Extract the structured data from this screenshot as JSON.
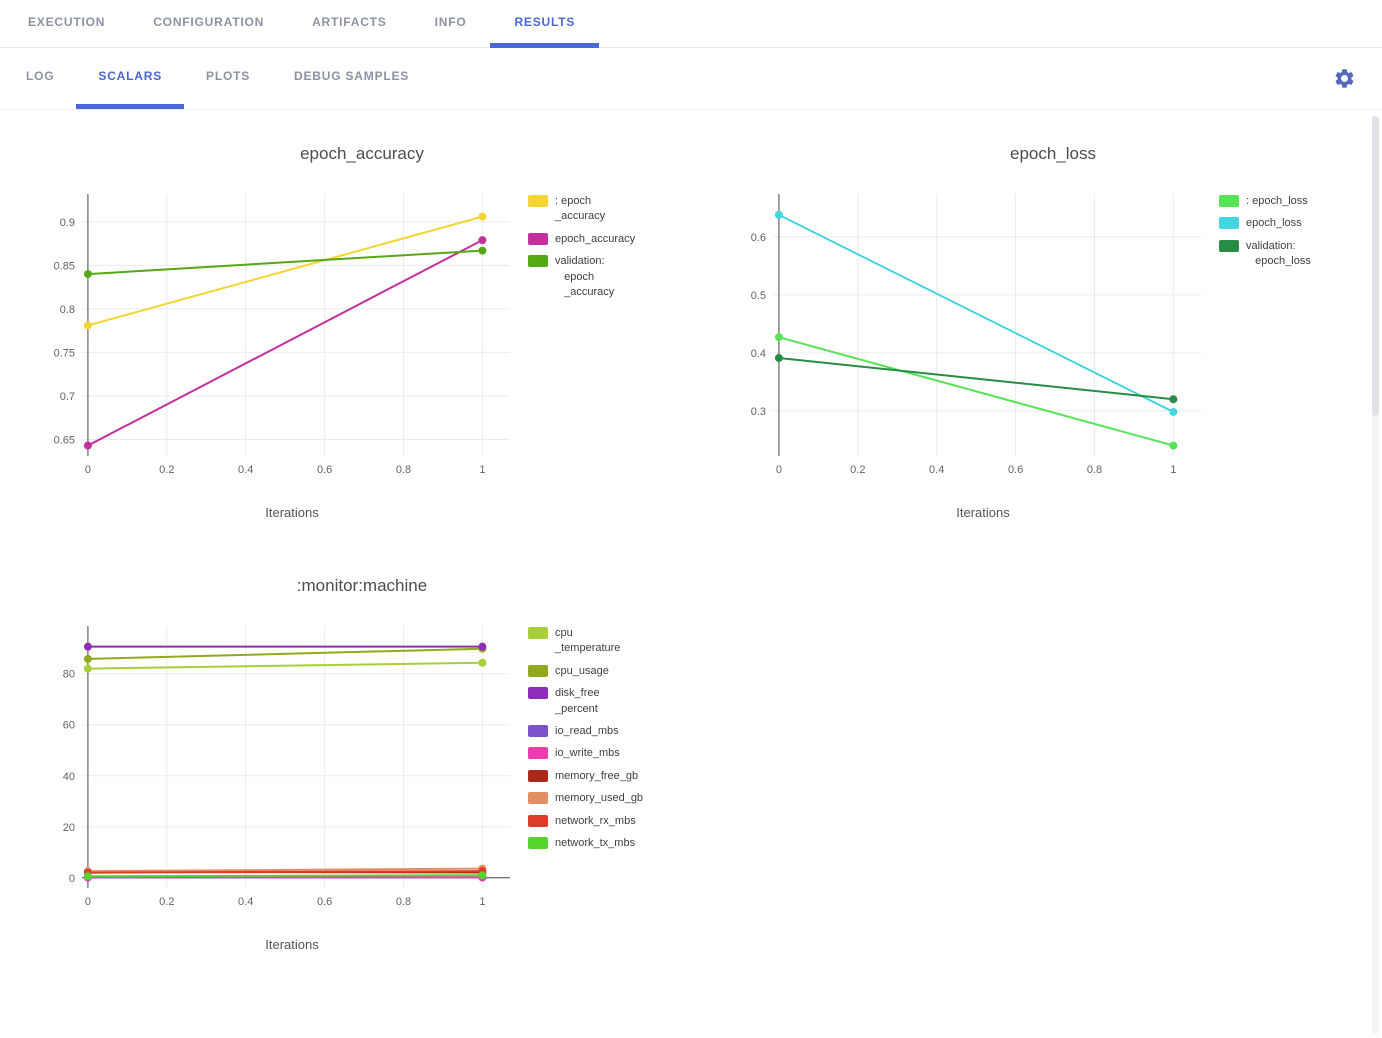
{
  "topnav": {
    "tabs": [
      {
        "label": "EXECUTION",
        "active": false
      },
      {
        "label": "CONFIGURATION",
        "active": false
      },
      {
        "label": "ARTIFACTS",
        "active": false
      },
      {
        "label": "INFO",
        "active": false
      },
      {
        "label": "RESULTS",
        "active": true
      }
    ]
  },
  "subnav": {
    "tabs": [
      {
        "label": "LOG",
        "active": false
      },
      {
        "label": "SCALARS",
        "active": true
      },
      {
        "label": "PLOTS",
        "active": false
      },
      {
        "label": "DEBUG SAMPLES",
        "active": false
      }
    ],
    "settings_icon": "gear-icon"
  },
  "colors": {
    "accent": "#4a67d9",
    "tab_inactive": "#8b93a3",
    "grid": "#ebebeb",
    "zeroline": "#444444"
  },
  "chart_data": [
    {
      "type": "line",
      "title": "epoch_accuracy",
      "xlabel": "Iterations",
      "legend_position": "right",
      "grid": true,
      "x": [
        0,
        1
      ],
      "xlim": [
        -0.015,
        1.07
      ],
      "xticks": [
        0,
        0.2,
        0.4,
        0.6,
        0.8,
        1
      ],
      "xtick_labels": [
        "0",
        "0.2",
        "0.4",
        "0.6",
        "0.8",
        "1"
      ],
      "ylim": [
        0.631,
        0.932
      ],
      "yticks": [
        0.65,
        0.7,
        0.75,
        0.8,
        0.85,
        0.9
      ],
      "ytick_labels": [
        "0.65",
        "0.7",
        "0.75",
        "0.8",
        "0.85",
        "0.9"
      ],
      "series": [
        {
          "name": ": epoch_accuracy",
          "label": ": epoch\n_accuracy",
          "color": "#f5d433",
          "values": [
            0.781,
            0.906
          ]
        },
        {
          "name": "epoch_accuracy",
          "label": "epoch_accuracy",
          "color": "#c2309d",
          "values": [
            0.643,
            0.879
          ]
        },
        {
          "name": "validation: epoch_accuracy",
          "label": "validation:\n   epoch\n   _accuracy",
          "color": "#55a813",
          "values": [
            0.84,
            0.867
          ]
        }
      ]
    },
    {
      "type": "line",
      "title": "epoch_loss",
      "xlabel": "Iterations",
      "legend_position": "right",
      "grid": true,
      "x": [
        0,
        1
      ],
      "xlim": [
        -0.015,
        1.07
      ],
      "xticks": [
        0,
        0.2,
        0.4,
        0.6,
        0.8,
        1
      ],
      "xtick_labels": [
        "0",
        "0.2",
        "0.4",
        "0.6",
        "0.8",
        "1"
      ],
      "ylim": [
        0.222,
        0.674
      ],
      "yticks": [
        0.3,
        0.4,
        0.5,
        0.6
      ],
      "ytick_labels": [
        "0.3",
        "0.4",
        "0.5",
        "0.6"
      ],
      "series": [
        {
          "name": ": epoch_loss",
          "label": ": epoch_loss",
          "color": "#57e357",
          "values": [
            0.427,
            0.24
          ]
        },
        {
          "name": "epoch_loss",
          "label": "epoch_loss",
          "color": "#45d5e0",
          "values": [
            0.638,
            0.298
          ]
        },
        {
          "name": "validation: epoch_loss",
          "label": "validation:\n   epoch_loss",
          "color": "#278c44",
          "values": [
            0.391,
            0.32
          ]
        }
      ]
    },
    {
      "type": "line",
      "title": ":monitor:machine",
      "xlabel": "Iterations",
      "legend_position": "right",
      "grid": true,
      "x": [
        0,
        1
      ],
      "xlim": [
        -0.015,
        1.07
      ],
      "xticks": [
        0,
        0.2,
        0.4,
        0.6,
        0.8,
        1
      ],
      "xtick_labels": [
        "0",
        "0.2",
        "0.4",
        "0.6",
        "0.8",
        "1"
      ],
      "ylim": [
        -4,
        98.7
      ],
      "yticks": [
        0,
        20,
        40,
        60,
        80
      ],
      "ytick_labels": [
        "0",
        "20",
        "40",
        "60",
        "80"
      ],
      "series": [
        {
          "name": "cpu_temperature",
          "label": "cpu\n_temperature",
          "color": "#a9cf38",
          "values": [
            82.0,
            84.3
          ]
        },
        {
          "name": "cpu_usage",
          "label": "cpu_usage",
          "color": "#93a81c",
          "values": [
            85.8,
            89.8
          ]
        },
        {
          "name": "disk_free_percent",
          "label": "disk_free\n_percent",
          "color": "#8e2bb8",
          "values": [
            90.6,
            90.6
          ]
        },
        {
          "name": "io_read_mbs",
          "label": "io_read_mbs",
          "color": "#7b52cc",
          "values": [
            0.1,
            0.1
          ]
        },
        {
          "name": "io_write_mbs",
          "label": "io_write_mbs",
          "color": "#ee3bad",
          "values": [
            0.2,
            0.2
          ]
        },
        {
          "name": "memory_free_gb",
          "label": "memory_free_gb",
          "color": "#ae2a18",
          "values": [
            2.3,
            2.1
          ]
        },
        {
          "name": "memory_used_gb",
          "label": "memory_used_gb",
          "color": "#e28e64",
          "values": [
            2.6,
            3.6
          ]
        },
        {
          "name": "network_rx_mbs",
          "label": "network_rx_mbs",
          "color": "#dd3b2b",
          "values": [
            2.0,
            2.6
          ]
        },
        {
          "name": "network_tx_mbs",
          "label": "network_tx_mbs",
          "color": "#55d42e",
          "values": [
            0.6,
            1.0
          ]
        }
      ]
    }
  ]
}
